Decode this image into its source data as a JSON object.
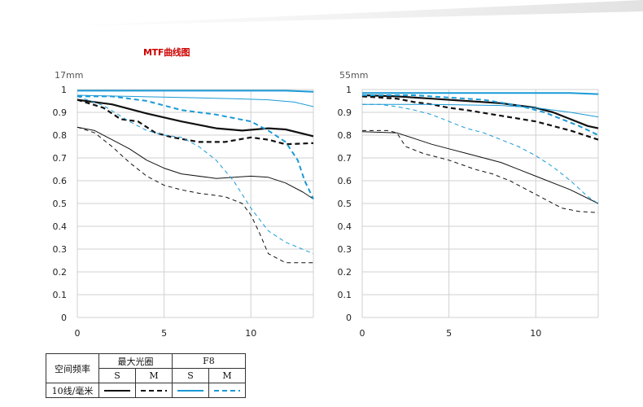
{
  "page_title": "MTF曲线图",
  "colors": {
    "black": "#111111",
    "blue": "#1a9ad6",
    "grid": "#d0d0d0",
    "title_red": "#cc0000"
  },
  "chart_data": [
    {
      "type": "line",
      "title": "17mm",
      "xlabel": "",
      "ylabel": "",
      "xlim": [
        0,
        13.6
      ],
      "ylim": [
        0,
        1
      ],
      "x_ticks": [
        0,
        5,
        10
      ],
      "y_ticks": [
        0,
        0.1,
        0.2,
        0.3,
        0.4,
        0.5,
        0.6,
        0.7,
        0.8,
        0.9,
        1
      ],
      "y_tick_labels": [
        "0",
        "0.1",
        "0.2",
        "0.3",
        "0.4",
        "0.5",
        "0.6",
        "0.7",
        "0.8",
        "0.9",
        "1"
      ],
      "grid": true,
      "series": [
        {
          "id": "wide-10-s",
          "color": "black",
          "width": 2.2,
          "dash": "",
          "x": [
            0,
            2,
            4,
            6,
            8,
            9.5,
            11,
            12,
            13.6
          ],
          "y": [
            0.955,
            0.935,
            0.895,
            0.86,
            0.83,
            0.82,
            0.83,
            0.825,
            0.795
          ]
        },
        {
          "id": "wide-10-m",
          "color": "black",
          "width": 2.2,
          "dash": "6,4",
          "x": [
            0,
            1.5,
            2.5,
            3.5,
            4.5,
            5.5,
            7,
            8.5,
            10,
            11,
            12,
            13.6
          ],
          "y": [
            0.955,
            0.92,
            0.87,
            0.86,
            0.81,
            0.79,
            0.77,
            0.77,
            0.79,
            0.78,
            0.76,
            0.765
          ]
        },
        {
          "id": "wide-30-s",
          "color": "black",
          "width": 1,
          "dash": "",
          "x": [
            0,
            1,
            2,
            3,
            4,
            5,
            6,
            8,
            10,
            11,
            12,
            13,
            13.6
          ],
          "y": [
            0.835,
            0.82,
            0.78,
            0.74,
            0.69,
            0.655,
            0.63,
            0.61,
            0.62,
            0.615,
            0.59,
            0.55,
            0.52
          ]
        },
        {
          "id": "wide-30-m",
          "color": "black",
          "width": 1,
          "dash": "5,4",
          "x": [
            0,
            1,
            2,
            3,
            4,
            5,
            6,
            7,
            8.5,
            9.5,
            10,
            10.5,
            11,
            11.5,
            12,
            13.6
          ],
          "y": [
            0.835,
            0.81,
            0.75,
            0.68,
            0.62,
            0.58,
            0.56,
            0.545,
            0.53,
            0.5,
            0.45,
            0.37,
            0.28,
            0.26,
            0.24,
            0.24
          ]
        },
        {
          "id": "f8-10-s",
          "color": "blue",
          "width": 2,
          "dash": "",
          "x": [
            0,
            4,
            8,
            12,
            13.6
          ],
          "y": [
            0.995,
            0.995,
            0.995,
            0.995,
            0.99
          ]
        },
        {
          "id": "f8-10-m",
          "color": "blue",
          "width": 2,
          "dash": "6,4",
          "x": [
            0,
            2,
            4,
            6,
            8,
            10,
            11,
            12,
            12.7,
            13.1,
            13.6
          ],
          "y": [
            0.97,
            0.97,
            0.95,
            0.91,
            0.89,
            0.86,
            0.82,
            0.77,
            0.69,
            0.6,
            0.52
          ]
        },
        {
          "id": "f8-30-s",
          "color": "blue",
          "width": 1,
          "dash": "",
          "x": [
            0,
            3,
            6,
            9,
            11,
            12.5,
            13.6
          ],
          "y": [
            0.975,
            0.97,
            0.965,
            0.96,
            0.955,
            0.945,
            0.925
          ]
        },
        {
          "id": "f8-30-m",
          "color": "blue",
          "width": 1,
          "dash": "5,4",
          "x": [
            0,
            1.5,
            3,
            4,
            5,
            6,
            7,
            8,
            9,
            10,
            11,
            12,
            13.6
          ],
          "y": [
            0.97,
            0.93,
            0.86,
            0.82,
            0.8,
            0.79,
            0.75,
            0.69,
            0.6,
            0.48,
            0.38,
            0.33,
            0.28
          ]
        }
      ]
    },
    {
      "type": "line",
      "title": "55mm",
      "xlabel": "",
      "ylabel": "",
      "xlim": [
        0,
        13.6
      ],
      "ylim": [
        0,
        1
      ],
      "x_ticks": [
        0,
        5,
        10
      ],
      "y_ticks": [
        0,
        0.1,
        0.2,
        0.3,
        0.4,
        0.5,
        0.6,
        0.7,
        0.8,
        0.9,
        1
      ],
      "y_tick_labels": [
        "0",
        "0.1",
        "0.2",
        "0.3",
        "0.4",
        "0.5",
        "0.6",
        "0.7",
        "0.8",
        "0.9",
        "1"
      ],
      "grid": true,
      "series": [
        {
          "id": "wide-10-s",
          "color": "black",
          "width": 2.2,
          "dash": "",
          "x": [
            0,
            2,
            4,
            6,
            8,
            10,
            11,
            12,
            13,
            13.6
          ],
          "y": [
            0.975,
            0.97,
            0.96,
            0.95,
            0.94,
            0.92,
            0.9,
            0.87,
            0.84,
            0.83
          ]
        },
        {
          "id": "wide-10-m",
          "color": "black",
          "width": 2.2,
          "dash": "6,4",
          "x": [
            0,
            2,
            3,
            4,
            5,
            6,
            8,
            10,
            12,
            13.6
          ],
          "y": [
            0.97,
            0.96,
            0.945,
            0.935,
            0.92,
            0.91,
            0.885,
            0.86,
            0.82,
            0.78
          ]
        },
        {
          "id": "wide-30-s",
          "color": "black",
          "width": 1,
          "dash": "",
          "x": [
            0,
            2,
            3,
            4,
            5,
            6,
            8,
            10,
            12,
            13.6
          ],
          "y": [
            0.815,
            0.81,
            0.785,
            0.76,
            0.74,
            0.72,
            0.68,
            0.62,
            0.56,
            0.5
          ]
        },
        {
          "id": "wide-30-m",
          "color": "black",
          "width": 1,
          "dash": "5,4",
          "x": [
            0,
            1.5,
            2,
            2.5,
            3.5,
            5,
            6.5,
            7.5,
            8.5,
            9.5,
            10.5,
            11.5,
            12.5,
            13.6
          ],
          "y": [
            0.82,
            0.82,
            0.81,
            0.75,
            0.72,
            0.69,
            0.65,
            0.63,
            0.6,
            0.56,
            0.52,
            0.48,
            0.465,
            0.46
          ]
        },
        {
          "id": "f8-10-s",
          "color": "blue",
          "width": 2,
          "dash": "",
          "x": [
            0,
            4,
            8,
            12,
            13.6
          ],
          "y": [
            0.985,
            0.985,
            0.985,
            0.985,
            0.98
          ]
        },
        {
          "id": "f8-10-m",
          "color": "blue",
          "width": 2,
          "dash": "6,4",
          "x": [
            0,
            3,
            5,
            7,
            9,
            10.5,
            11.5,
            12.5,
            13.6
          ],
          "y": [
            0.975,
            0.975,
            0.965,
            0.955,
            0.93,
            0.9,
            0.87,
            0.84,
            0.8
          ]
        },
        {
          "id": "f8-30-s",
          "color": "blue",
          "width": 1,
          "dash": "",
          "x": [
            0,
            4,
            8,
            10,
            12,
            13.6
          ],
          "y": [
            0.935,
            0.935,
            0.93,
            0.92,
            0.9,
            0.88
          ]
        },
        {
          "id": "f8-30-m",
          "color": "blue",
          "width": 1,
          "dash": "5,4",
          "x": [
            0,
            1,
            2,
            3,
            4,
            5,
            6,
            7,
            8,
            9,
            10,
            11,
            12,
            13,
            13.6
          ],
          "y": [
            0.935,
            0.935,
            0.925,
            0.91,
            0.89,
            0.86,
            0.83,
            0.81,
            0.78,
            0.75,
            0.71,
            0.66,
            0.6,
            0.53,
            0.5
          ]
        }
      ]
    }
  ],
  "legend_table": {
    "row_header": "空间频率",
    "group_wide": "最大光圈",
    "group_f8": "F8",
    "col_s": "S",
    "col_m": "M",
    "row_10": "10线/毫米"
  }
}
